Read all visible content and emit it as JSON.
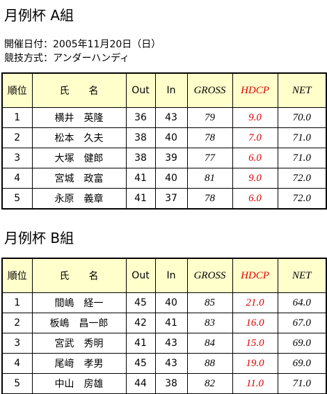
{
  "info": [
    "開催日付：2005年11月20日（日）",
    "競技方式：アンダーハンディ"
  ],
  "groups": [
    {
      "title": "月例杯 A組",
      "header": [
        "順位",
        "氏　　名",
        "Out",
        "In",
        "GROSS",
        "HDCP",
        "NET"
      ],
      "rows": [
        [
          "1",
          "横井　英隆",
          "36",
          "43",
          "79",
          "9.0",
          "70.0"
        ],
        [
          "2",
          "松本　久夫",
          "38",
          "40",
          "78",
          "7.0",
          "71.0"
        ],
        [
          "3",
          "大塚　健郎",
          "38",
          "39",
          "77",
          "6.0",
          "71.0"
        ],
        [
          "4",
          "宮城　政富",
          "41",
          "40",
          "81",
          "9.0",
          "72.0"
        ],
        [
          "5",
          "永原　義章",
          "41",
          "37",
          "78",
          "6.0",
          "72.0"
        ]
      ]
    },
    {
      "title": "月例杯 B組",
      "header": [
        "順位",
        "氏　　名",
        "Out",
        "In",
        "GROSS",
        "HDCP",
        "NET"
      ],
      "rows": [
        [
          "1",
          "間嶋　経一",
          "45",
          "40",
          "85",
          "21.0",
          "64.0"
        ],
        [
          "2",
          "板嶋　昌一郎",
          "42",
          "41",
          "83",
          "16.0",
          "67.0"
        ],
        [
          "3",
          "宮武　秀明",
          "41",
          "43",
          "84",
          "15.0",
          "69.0"
        ],
        [
          "4",
          "尾﨑　孝男",
          "45",
          "43",
          "88",
          "19.0",
          "69.0"
        ],
        [
          "5",
          "中山　房雄",
          "44",
          "38",
          "82",
          "11.0",
          "71.0"
        ]
      ]
    }
  ]
}
